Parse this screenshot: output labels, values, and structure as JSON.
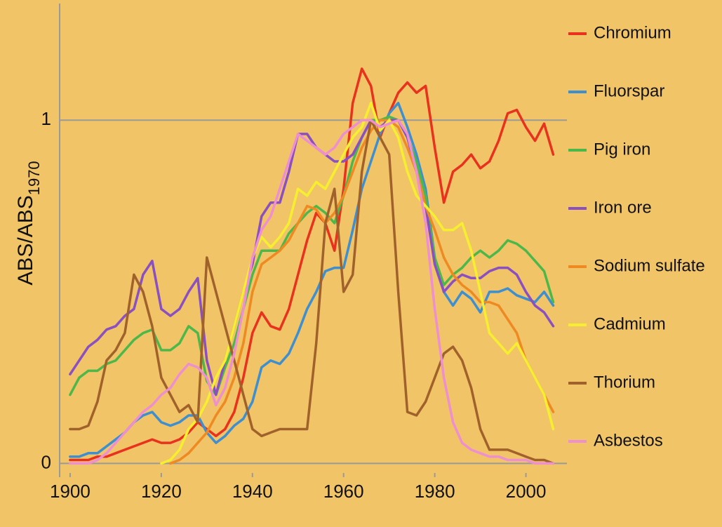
{
  "chart_data": {
    "type": "line",
    "ylabel": "ABS/ABS",
    "ylabel_sub": "1970",
    "x": [
      1900,
      1902,
      1904,
      1906,
      1908,
      1910,
      1912,
      1914,
      1916,
      1918,
      1920,
      1922,
      1924,
      1926,
      1928,
      1930,
      1932,
      1934,
      1936,
      1938,
      1940,
      1942,
      1944,
      1946,
      1948,
      1950,
      1952,
      1954,
      1956,
      1958,
      1960,
      1962,
      1964,
      1966,
      1968,
      1970,
      1972,
      1974,
      1976,
      1978,
      1980,
      1982,
      1984,
      1986,
      1988,
      1990,
      1992,
      1994,
      1996,
      1998,
      2000,
      2002,
      2004,
      2006
    ],
    "xlim": [
      1897.7,
      2009
    ],
    "xticks": [
      1900,
      1920,
      1940,
      1960,
      1980,
      2000
    ],
    "ylim": [
      -0.04,
      1.34
    ],
    "yticks": [
      0,
      1
    ],
    "grid": true,
    "legend": "right",
    "series": [
      {
        "name": "Chromium",
        "color": "#e8321e",
        "values": [
          0.01,
          0.01,
          0.01,
          0.02,
          0.02,
          0.03,
          0.04,
          0.05,
          0.06,
          0.07,
          0.06,
          0.06,
          0.07,
          0.09,
          0.12,
          0.1,
          0.08,
          0.1,
          0.15,
          0.25,
          0.38,
          0.44,
          0.4,
          0.39,
          0.45,
          0.55,
          0.65,
          0.73,
          0.7,
          0.62,
          0.8,
          1.05,
          1.15,
          1.1,
          0.95,
          1.02,
          1.08,
          1.11,
          1.08,
          1.1,
          0.92,
          0.76,
          0.85,
          0.87,
          0.9,
          0.86,
          0.88,
          0.94,
          1.02,
          1.03,
          0.98,
          0.94,
          0.99,
          0.9
        ]
      },
      {
        "name": "Fluorspar",
        "color": "#3d8fd0",
        "values": [
          0.02,
          0.02,
          0.03,
          0.03,
          0.05,
          0.07,
          0.09,
          0.12,
          0.14,
          0.15,
          0.12,
          0.11,
          0.12,
          0.14,
          0.14,
          0.09,
          0.06,
          0.08,
          0.11,
          0.13,
          0.18,
          0.28,
          0.3,
          0.29,
          0.32,
          0.38,
          0.45,
          0.5,
          0.56,
          0.57,
          0.57,
          0.68,
          0.8,
          0.88,
          0.96,
          1.02,
          1.05,
          0.98,
          0.9,
          0.8,
          0.6,
          0.5,
          0.46,
          0.5,
          0.48,
          0.44,
          0.5,
          0.5,
          0.51,
          0.49,
          0.48,
          0.47,
          0.5,
          0.46
        ]
      },
      {
        "name": "Pig iron",
        "color": "#4cb84a",
        "values": [
          0.2,
          0.25,
          0.27,
          0.27,
          0.29,
          0.3,
          0.33,
          0.36,
          0.38,
          0.39,
          0.33,
          0.33,
          0.35,
          0.4,
          0.38,
          0.24,
          0.2,
          0.28,
          0.35,
          0.45,
          0.55,
          0.62,
          0.62,
          0.62,
          0.67,
          0.7,
          0.73,
          0.75,
          0.73,
          0.7,
          0.78,
          0.88,
          0.95,
          1.0,
          1.0,
          1.01,
          1.0,
          0.95,
          0.88,
          0.78,
          0.6,
          0.52,
          0.55,
          0.57,
          0.6,
          0.62,
          0.6,
          0.62,
          0.65,
          0.64,
          0.62,
          0.59,
          0.56,
          0.47
        ]
      },
      {
        "name": "Iron ore",
        "color": "#8a4fc0",
        "values": [
          0.26,
          0.3,
          0.34,
          0.36,
          0.39,
          0.4,
          0.43,
          0.45,
          0.55,
          0.59,
          0.45,
          0.43,
          0.45,
          0.5,
          0.54,
          0.3,
          0.2,
          0.3,
          0.4,
          0.5,
          0.58,
          0.72,
          0.76,
          0.76,
          0.85,
          0.96,
          0.96,
          0.92,
          0.9,
          0.88,
          0.88,
          0.9,
          0.95,
          1.0,
          0.98,
          1.0,
          1.0,
          0.95,
          0.85,
          0.75,
          0.58,
          0.5,
          0.53,
          0.55,
          0.54,
          0.54,
          0.56,
          0.57,
          0.57,
          0.55,
          0.5,
          0.46,
          0.44,
          0.4
        ]
      },
      {
        "name": "Sodium sulfate",
        "color": "#ef8a22",
        "values": [
          null,
          null,
          null,
          null,
          null,
          null,
          null,
          null,
          null,
          null,
          null,
          0.0,
          0.01,
          0.03,
          0.06,
          0.09,
          0.14,
          0.18,
          0.25,
          0.35,
          0.5,
          0.58,
          0.6,
          0.62,
          0.65,
          0.7,
          0.75,
          0.74,
          0.7,
          0.73,
          0.78,
          0.85,
          0.92,
          0.97,
          1.0,
          1.0,
          0.98,
          0.92,
          0.85,
          0.75,
          0.68,
          0.6,
          0.55,
          0.52,
          0.5,
          0.47,
          0.47,
          0.46,
          0.42,
          0.38,
          0.3,
          0.25,
          0.2,
          0.15
        ]
      },
      {
        "name": "Cadmium",
        "color": "#f5ef30",
        "values": [
          null,
          null,
          null,
          null,
          null,
          null,
          null,
          null,
          null,
          null,
          0.0,
          0.01,
          0.04,
          0.1,
          0.13,
          0.18,
          0.25,
          0.3,
          0.4,
          0.5,
          0.6,
          0.66,
          0.63,
          0.66,
          0.7,
          0.8,
          0.78,
          0.82,
          0.8,
          0.85,
          0.9,
          0.95,
          0.98,
          1.05,
          0.97,
          1.0,
          0.95,
          0.85,
          0.78,
          0.75,
          0.72,
          0.68,
          0.68,
          0.7,
          0.62,
          0.5,
          0.38,
          0.35,
          0.32,
          0.35,
          0.3,
          0.25,
          0.2,
          0.1
        ]
      },
      {
        "name": "Thorium",
        "color": "#a0622a",
        "values": [
          0.1,
          0.1,
          0.11,
          0.18,
          0.3,
          0.33,
          0.38,
          0.55,
          0.5,
          0.4,
          0.25,
          0.2,
          0.15,
          0.17,
          0.12,
          0.6,
          0.5,
          0.4,
          0.3,
          0.2,
          0.1,
          0.08,
          0.09,
          0.1,
          0.1,
          0.1,
          0.1,
          0.35,
          0.7,
          0.8,
          0.5,
          0.55,
          0.85,
          1.0,
          0.95,
          0.9,
          0.5,
          0.15,
          0.14,
          0.18,
          0.25,
          0.32,
          0.34,
          0.3,
          0.22,
          0.1,
          0.04,
          0.04,
          0.04,
          0.03,
          0.02,
          0.01,
          0.01,
          0.0
        ]
      },
      {
        "name": "Asbestos",
        "color": "#ee8fd0",
        "values": [
          0.0,
          0.0,
          0.0,
          0.01,
          0.03,
          0.06,
          0.09,
          0.12,
          0.15,
          0.17,
          0.2,
          0.22,
          0.26,
          0.29,
          0.28,
          0.25,
          0.17,
          0.22,
          0.32,
          0.45,
          0.6,
          0.68,
          0.72,
          0.8,
          0.88,
          0.96,
          0.94,
          0.92,
          0.9,
          0.92,
          0.96,
          0.98,
          1.0,
          1.0,
          0.98,
          0.99,
          1.0,
          0.96,
          0.85,
          0.7,
          0.45,
          0.25,
          0.12,
          0.06,
          0.04,
          0.03,
          0.02,
          0.02,
          0.01,
          0.01,
          0.01,
          0.0,
          0.0,
          0.0
        ]
      }
    ]
  }
}
